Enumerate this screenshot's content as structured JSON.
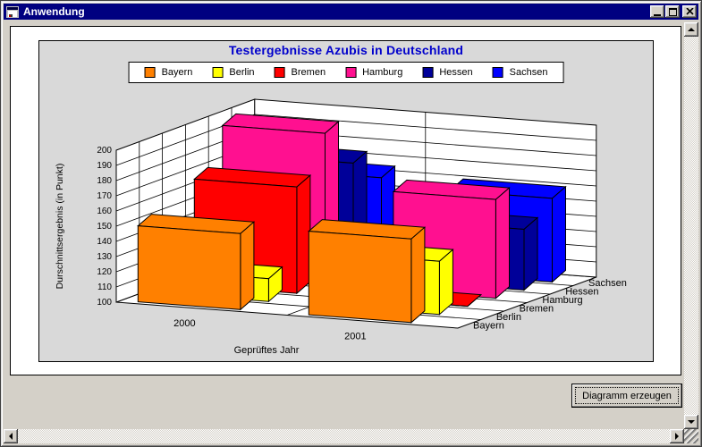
{
  "window": {
    "title": "Anwendung"
  },
  "chart_data": {
    "type": "bar",
    "style": "3d-clustered",
    "title": "Testergebnisse Azubis in Deutschland",
    "title_color": "#0000cc",
    "categories": [
      "2000",
      "2001"
    ],
    "series": [
      {
        "name": "Bayern",
        "color": "#ff8000",
        "values": [
          150,
          155
        ]
      },
      {
        "name": "Berlin",
        "color": "#ffff00",
        "values": [
          115,
          135
        ]
      },
      {
        "name": "Bremen",
        "color": "#ff0000",
        "values": [
          170,
          100
        ]
      },
      {
        "name": "Hamburg",
        "color": "#ff1090",
        "values": [
          200,
          165
        ]
      },
      {
        "name": "Hessen",
        "color": "#000099",
        "values": [
          175,
          140
        ]
      },
      {
        "name": "Sachsen",
        "color": "#0000ff",
        "values": [
          160,
          155
        ]
      }
    ],
    "xlabel": "Geprüftes Jahr",
    "ylabel": "Durschnittsergebnis (in Punkt)",
    "ylim": [
      100,
      200
    ],
    "ytick_step": 10,
    "grid": true,
    "legend_position": "top",
    "wall_color": "#ffffff",
    "plot_background": "#d9d9d9"
  },
  "button": {
    "label": "Diagramm erzeugen"
  }
}
